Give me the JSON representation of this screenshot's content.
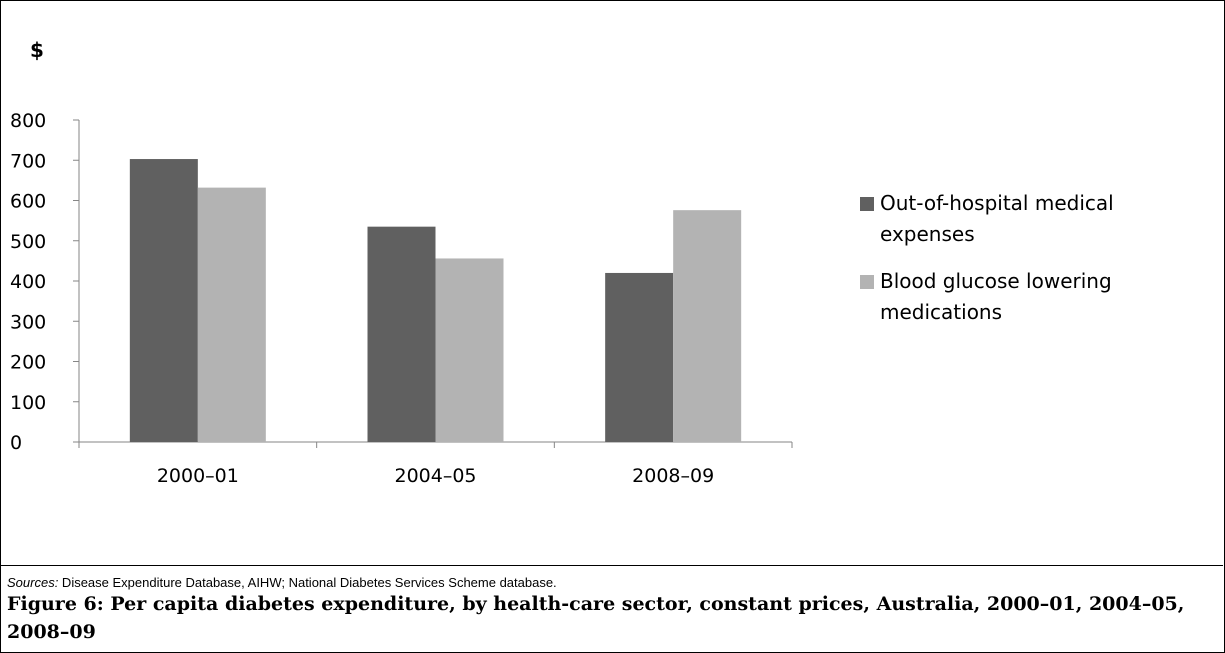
{
  "chart_data": {
    "type": "bar",
    "ylabel": "$",
    "categories": [
      "2000–01",
      "2004–05",
      "2008–09"
    ],
    "series": [
      {
        "name": "Out-of-hospital medical expenses",
        "values": [
          703,
          535,
          420
        ],
        "color": "#606060"
      },
      {
        "name": "Blood glucose lowering medications",
        "values": [
          632,
          456,
          576
        ],
        "color": "#b3b3b3"
      }
    ],
    "ylim": [
      0,
      800
    ],
    "yticks": [
      0,
      100,
      200,
      300,
      400,
      500,
      600,
      700,
      800
    ],
    "grid": false,
    "legend_position": "right"
  },
  "legend": {
    "item1_line1": "Out-of-hospital medical",
    "item1_line2": "expenses",
    "item2_line1": "Blood glucose lowering",
    "item2_line2": "medications"
  },
  "sources": {
    "prefix": "Sources:",
    "text": " Disease Expenditure Database, AIHW; National Diabetes Services Scheme database."
  },
  "caption": "Figure 6: Per capita diabetes expenditure, by health-care sector, constant prices, Australia, 2000–01, 2004–05, 2008–09"
}
